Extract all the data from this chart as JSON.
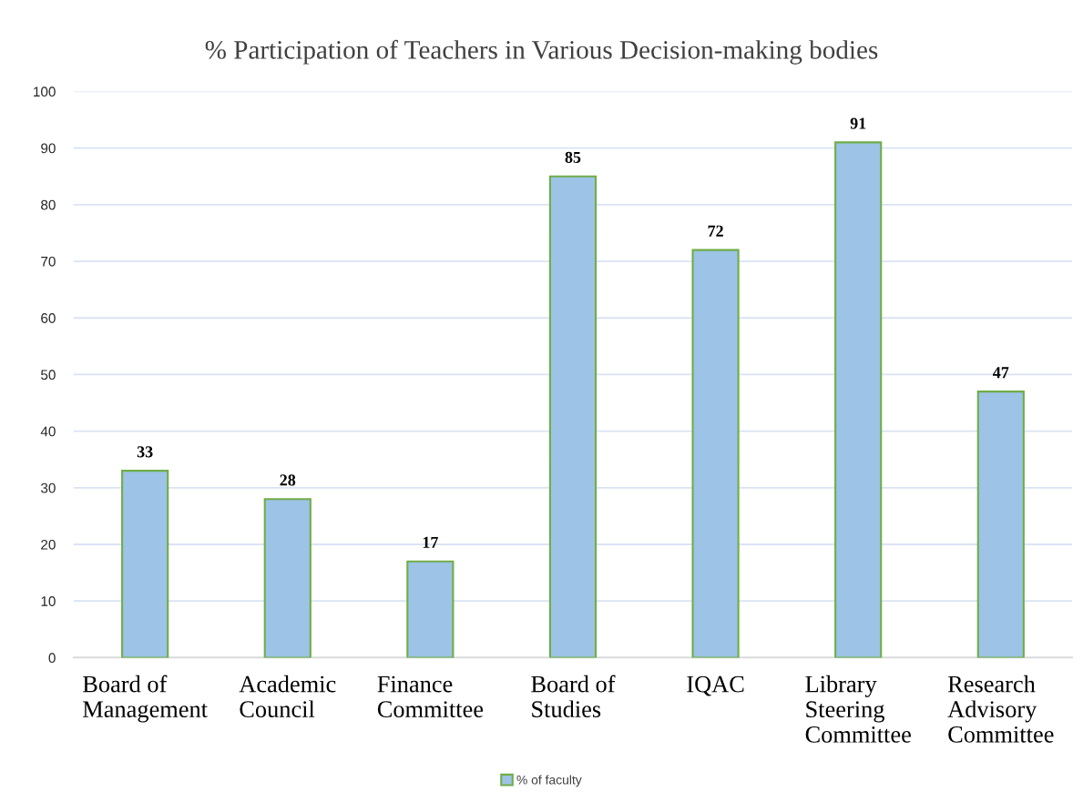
{
  "chart_data": {
    "type": "bar",
    "title": "% Participation of Teachers in Various Decision-making bodies",
    "categories": [
      "Board of\nManagement",
      "Academic\nCouncil",
      "Finance\nCommittee",
      "Board of\nStudies",
      "IQAC",
      "Library\nSteering\nCommittee",
      "Research\nAdvisory\nCommittee"
    ],
    "series": [
      {
        "name": "% of faculty",
        "color": "#9dc3e6",
        "values": [
          33,
          28,
          17,
          85,
          72,
          91,
          47
        ]
      }
    ],
    "ylim": [
      0,
      100
    ],
    "yticks": [
      0,
      10,
      20,
      30,
      40,
      50,
      60,
      70,
      80,
      90,
      100
    ],
    "grid": "y",
    "legend": "bottom",
    "data_labels": true
  }
}
